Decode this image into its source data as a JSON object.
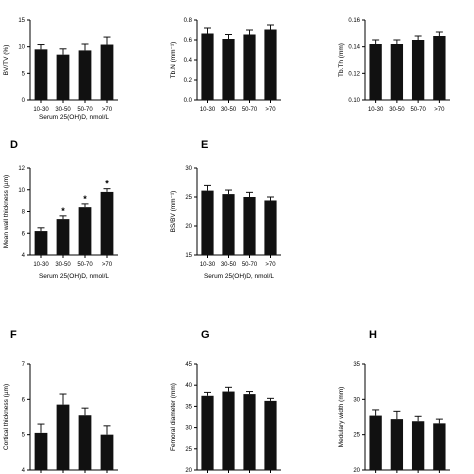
{
  "chart_data": [
    {
      "type": "bar",
      "title": "",
      "ylabel": "BV/TV (%)",
      "xlabel": "Serum 25(OH)D, nmol/L",
      "categories": [
        "10-30",
        "30-50",
        "50-70",
        ">70"
      ],
      "values": [
        9.5,
        8.5,
        9.3,
        10.4
      ],
      "errors": [
        0.9,
        1.1,
        1.2,
        1.4
      ],
      "ylim": [
        0,
        15
      ],
      "yticks": [
        "0",
        "5",
        "10",
        "15"
      ]
    },
    {
      "type": "bar",
      "title": "",
      "ylabel": "Tb.N (mm⁻¹)",
      "xlabel": "",
      "categories": [
        "10-30",
        "30-50",
        "50-70",
        ">70"
      ],
      "values": [
        0.665,
        0.61,
        0.655,
        0.705
      ],
      "errors": [
        0.055,
        0.045,
        0.045,
        0.045
      ],
      "ylim": [
        0,
        0.8
      ],
      "yticks": [
        "0.0",
        "0.2",
        "0.4",
        "0.6",
        "0.8"
      ]
    },
    {
      "type": "bar",
      "title": "",
      "ylabel": "Tb.Th (mm)",
      "xlabel": "",
      "categories": [
        "10-30",
        "30-50",
        "50-70",
        ">70"
      ],
      "values": [
        0.142,
        0.142,
        0.145,
        0.148
      ],
      "errors": [
        0.003,
        0.003,
        0.003,
        0.003
      ],
      "ylim": [
        0.1,
        0.16
      ],
      "yticks": [
        "0.10",
        "0.12",
        "0.14",
        "0.16"
      ]
    },
    {
      "type": "bar",
      "panel": "D",
      "title": "",
      "ylabel": "Mean wall thickness (µm)",
      "xlabel": "Serum 25(OH)D, nmol/L",
      "categories": [
        "10-30",
        "30-50",
        "50-70",
        ">70"
      ],
      "values": [
        6.2,
        7.3,
        8.4,
        9.8
      ],
      "errors": [
        0.3,
        0.3,
        0.3,
        0.3
      ],
      "annotations": [
        "",
        "*",
        "*",
        "*"
      ],
      "ylim": [
        4,
        12
      ],
      "yticks": [
        "4",
        "6",
        "8",
        "10",
        "12"
      ]
    },
    {
      "type": "bar",
      "panel": "E",
      "title": "",
      "ylabel": "BS/BV (mm⁻¹)",
      "xlabel": "Serum 25(OH)D, nmol/L",
      "categories": [
        "10-30",
        "30-50",
        "50-70",
        ">70"
      ],
      "values": [
        26.1,
        25.5,
        25.0,
        24.4
      ],
      "errors": [
        0.9,
        0.7,
        0.8,
        0.6
      ],
      "ylim": [
        15,
        30
      ],
      "yticks": [
        "15",
        "20",
        "25",
        "30"
      ]
    },
    {
      "type": "bar",
      "panel": "F",
      "title": "",
      "ylabel": "Cortical thickness (µm)",
      "xlabel": "",
      "categories": [
        "",
        "",
        "",
        ""
      ],
      "values": [
        5.05,
        5.85,
        5.55,
        5.0
      ],
      "errors": [
        0.25,
        0.3,
        0.2,
        0.25
      ],
      "ylim": [
        4,
        7
      ],
      "yticks": [
        "4",
        "5",
        "6",
        "7"
      ]
    },
    {
      "type": "bar",
      "panel": "G",
      "title": "",
      "ylabel": "Femoral diameter (mm)",
      "xlabel": "",
      "categories": [
        "",
        "",
        "",
        ""
      ],
      "values": [
        37.5,
        38.5,
        37.9,
        36.3
      ],
      "errors": [
        0.8,
        1.0,
        0.6,
        0.6
      ],
      "ylim": [
        20,
        45
      ],
      "yticks": [
        "20",
        "25",
        "30",
        "35",
        "40",
        "45"
      ]
    },
    {
      "type": "bar",
      "panel": "H",
      "title": "",
      "ylabel": "Medulary width (mm)",
      "xlabel": "",
      "categories": [
        "",
        "",
        "",
        ""
      ],
      "values": [
        27.7,
        27.2,
        26.9,
        26.6
      ],
      "errors": [
        0.8,
        1.1,
        0.7,
        0.6
      ],
      "ylim": [
        20,
        35
      ],
      "yticks": [
        "20",
        "25",
        "30",
        "35"
      ]
    }
  ]
}
